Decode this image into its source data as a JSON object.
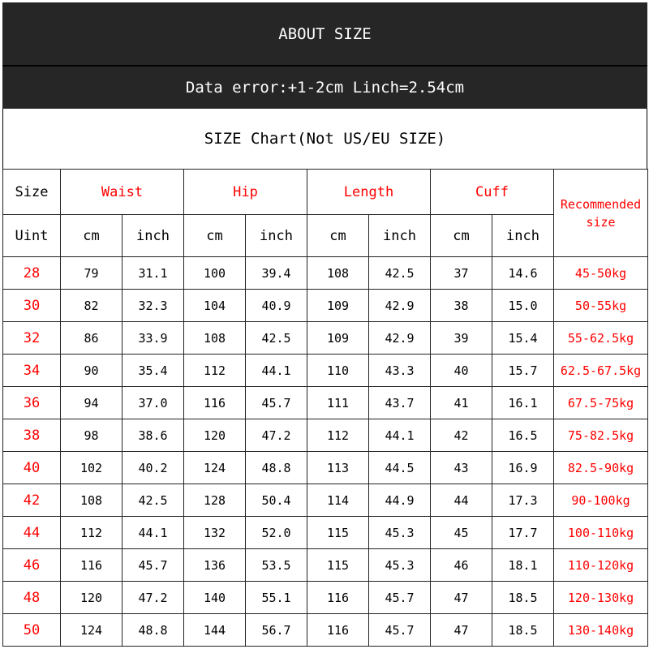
{
  "header": {
    "title": "ABOUT SIZE",
    "note": "Data error:+1-2cm Linch=2.54cm",
    "chart_title": "SIZE Chart(Not US/EU SIZE)"
  },
  "columns": {
    "size": "Size",
    "unit": "Uint",
    "groups": [
      "Waist",
      "Hip",
      "Length",
      "Cuff"
    ],
    "units": [
      "cm",
      "inch"
    ],
    "recommended": "Recommended size"
  },
  "colors": {
    "accent": "#ff0000",
    "band": "#262626"
  },
  "rows": [
    [
      "28",
      "79",
      "31.1",
      "100",
      "39.4",
      "108",
      "42.5",
      "37",
      "14.6",
      "45-50kg"
    ],
    [
      "30",
      "82",
      "32.3",
      "104",
      "40.9",
      "109",
      "42.9",
      "38",
      "15.0",
      "50-55kg"
    ],
    [
      "32",
      "86",
      "33.9",
      "108",
      "42.5",
      "109",
      "42.9",
      "39",
      "15.4",
      "55-62.5kg"
    ],
    [
      "34",
      "90",
      "35.4",
      "112",
      "44.1",
      "110",
      "43.3",
      "40",
      "15.7",
      "62.5-67.5kg"
    ],
    [
      "36",
      "94",
      "37.0",
      "116",
      "45.7",
      "111",
      "43.7",
      "41",
      "16.1",
      "67.5-75kg"
    ],
    [
      "38",
      "98",
      "38.6",
      "120",
      "47.2",
      "112",
      "44.1",
      "42",
      "16.5",
      "75-82.5kg"
    ],
    [
      "40",
      "102",
      "40.2",
      "124",
      "48.8",
      "113",
      "44.5",
      "43",
      "16.9",
      "82.5-90kg"
    ],
    [
      "42",
      "108",
      "42.5",
      "128",
      "50.4",
      "114",
      "44.9",
      "44",
      "17.3",
      "90-100kg"
    ],
    [
      "44",
      "112",
      "44.1",
      "132",
      "52.0",
      "115",
      "45.3",
      "45",
      "17.7",
      "100-110kg"
    ],
    [
      "46",
      "116",
      "45.7",
      "136",
      "53.5",
      "115",
      "45.3",
      "46",
      "18.1",
      "110-120kg"
    ],
    [
      "48",
      "120",
      "47.2",
      "140",
      "55.1",
      "116",
      "45.7",
      "47",
      "18.5",
      "120-130kg"
    ],
    [
      "50",
      "124",
      "48.8",
      "144",
      "56.7",
      "116",
      "45.7",
      "47",
      "18.5",
      "130-140kg"
    ]
  ]
}
